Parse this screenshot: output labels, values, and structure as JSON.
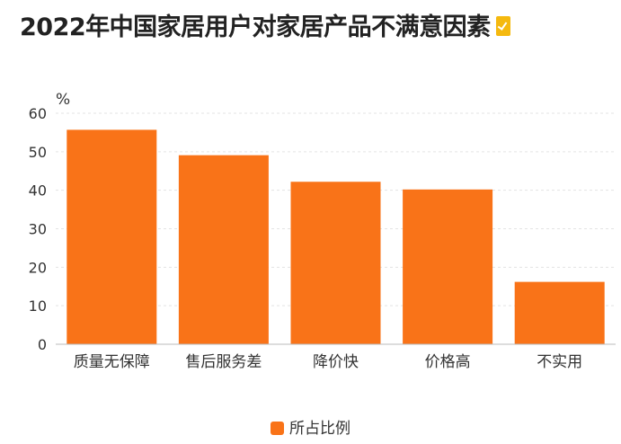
{
  "title": "2022年中国家居用户对家居产品不满意因素",
  "colors": {
    "bar": "#f97318",
    "grid": "#e3e3e3",
    "axis": "#bbbbbb",
    "badge": "#f5b90f"
  },
  "chart_data": {
    "type": "bar",
    "title": "2022年中国家居用户对家居产品不满意因素",
    "unit": "%",
    "categories": [
      "质量无保障",
      "售后服务差",
      "降价快",
      "价格高",
      "不实用"
    ],
    "series": [
      {
        "name": "所占比例",
        "values": [
          55.7,
          49.1,
          42.2,
          40.2,
          16.2
        ]
      }
    ],
    "yticks": [
      0,
      10,
      20,
      30,
      40,
      50,
      60
    ],
    "ylim": [
      0,
      60
    ],
    "grid": true,
    "legend": "bottom-center"
  }
}
